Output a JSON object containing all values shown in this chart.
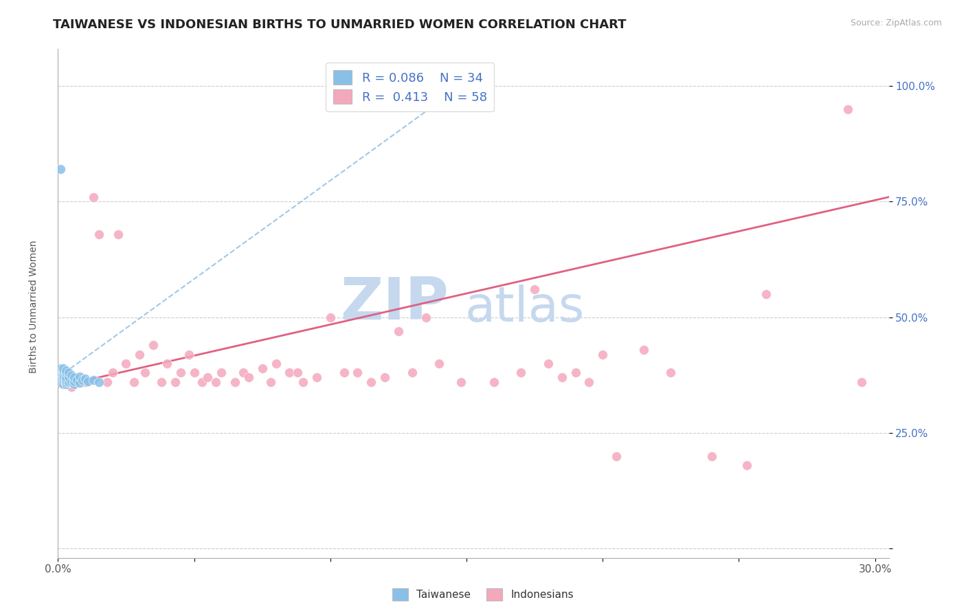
{
  "title": "TAIWANESE VS INDONESIAN BIRTHS TO UNMARRIED WOMEN CORRELATION CHART",
  "source_text": "Source: ZipAtlas.com",
  "ylabel": "Births to Unmarried Women",
  "xlim": [
    0.0,
    0.305
  ],
  "ylim": [
    -0.02,
    1.08
  ],
  "background_color": "#ffffff",
  "grid_color": "#cccccc",
  "taiwan_color": "#89c0e8",
  "indonesia_color": "#f4a8bc",
  "taiwan_R": 0.086,
  "taiwan_N": 34,
  "indonesia_R": 0.413,
  "indonesia_N": 58,
  "tw_trend_x": [
    0.0,
    0.155
  ],
  "tw_trend_y0": 0.37,
  "tw_trend_y1": 1.03,
  "id_trend_x": [
    0.0,
    0.305
  ],
  "id_trend_y0": 0.35,
  "id_trend_y1": 0.76,
  "tw_scatter_x": [
    0.001,
    0.001,
    0.001,
    0.001,
    0.002,
    0.002,
    0.002,
    0.002,
    0.002,
    0.002,
    0.002,
    0.003,
    0.003,
    0.003,
    0.003,
    0.003,
    0.003,
    0.004,
    0.004,
    0.004,
    0.005,
    0.005,
    0.006,
    0.006,
    0.006,
    0.007,
    0.008,
    0.008,
    0.009,
    0.01,
    0.011,
    0.013,
    0.015,
    0.001
  ],
  "tw_scatter_y": [
    0.36,
    0.37,
    0.38,
    0.39,
    0.355,
    0.365,
    0.37,
    0.375,
    0.38,
    0.385,
    0.39,
    0.355,
    0.36,
    0.365,
    0.37,
    0.38,
    0.385,
    0.36,
    0.37,
    0.38,
    0.36,
    0.375,
    0.355,
    0.362,
    0.37,
    0.365,
    0.358,
    0.372,
    0.365,
    0.368,
    0.362,
    0.365,
    0.36,
    0.82
  ],
  "id_scatter_x": [
    0.005,
    0.01,
    0.013,
    0.015,
    0.018,
    0.02,
    0.022,
    0.025,
    0.028,
    0.03,
    0.032,
    0.035,
    0.038,
    0.04,
    0.043,
    0.045,
    0.048,
    0.05,
    0.053,
    0.055,
    0.058,
    0.06,
    0.065,
    0.068,
    0.07,
    0.075,
    0.078,
    0.08,
    0.085,
    0.088,
    0.09,
    0.095,
    0.1,
    0.105,
    0.11,
    0.115,
    0.12,
    0.125,
    0.13,
    0.135,
    0.14,
    0.148,
    0.16,
    0.17,
    0.175,
    0.18,
    0.185,
    0.19,
    0.195,
    0.2,
    0.205,
    0.215,
    0.225,
    0.24,
    0.253,
    0.26,
    0.29,
    0.295
  ],
  "id_scatter_y": [
    0.35,
    0.36,
    0.76,
    0.68,
    0.36,
    0.38,
    0.68,
    0.4,
    0.36,
    0.42,
    0.38,
    0.44,
    0.36,
    0.4,
    0.36,
    0.38,
    0.42,
    0.38,
    0.36,
    0.37,
    0.36,
    0.38,
    0.36,
    0.38,
    0.37,
    0.39,
    0.36,
    0.4,
    0.38,
    0.38,
    0.36,
    0.37,
    0.5,
    0.38,
    0.38,
    0.36,
    0.37,
    0.47,
    0.38,
    0.5,
    0.4,
    0.36,
    0.36,
    0.38,
    0.56,
    0.4,
    0.37,
    0.38,
    0.36,
    0.42,
    0.2,
    0.43,
    0.38,
    0.2,
    0.18,
    0.55,
    0.95,
    0.36
  ],
  "watermark_zip": "ZIP",
  "watermark_atlas": "atlas",
  "watermark_color_zip": "#c5d8ee",
  "watermark_color_atlas": "#c5d8ee",
  "title_fontsize": 13,
  "axis_label_fontsize": 10,
  "tick_fontsize": 11,
  "legend_fontsize": 13,
  "ytick_positions": [
    0.0,
    0.25,
    0.5,
    0.75,
    1.0
  ],
  "yticklabels_right": [
    "",
    "25.0%",
    "50.0%",
    "75.0%",
    "100.0%"
  ]
}
